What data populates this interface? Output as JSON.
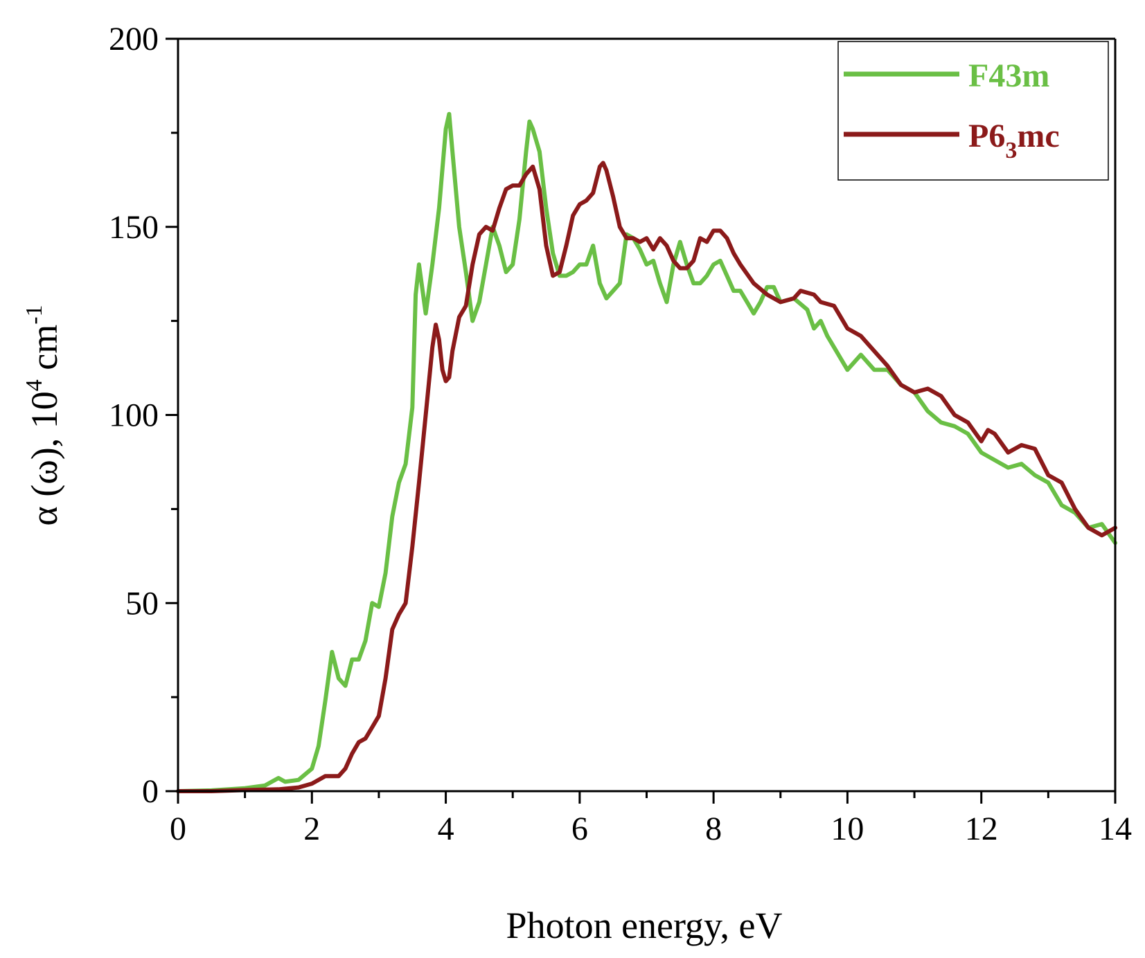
{
  "chart_data": {
    "type": "line",
    "title": "",
    "xlabel": "Photon energy, eV",
    "ylabel": {
      "prefix": "α (ω),  10",
      "superscript": "4",
      "unit": " cm",
      "unit_superscript": "-1"
    },
    "xlim": [
      0,
      14
    ],
    "ylim": [
      0,
      200
    ],
    "xticks": [
      0,
      2,
      4,
      6,
      8,
      10,
      12,
      14
    ],
    "yticks": [
      0,
      50,
      100,
      150,
      200
    ],
    "x_minor_step": 1,
    "y_minor_step": 25,
    "grid": false,
    "legend_position": "top-right",
    "series": [
      {
        "name": "F43m",
        "label_parts": {
          "main": "F43m",
          "sub": ""
        },
        "color": "#6abf45",
        "points": [
          [
            0,
            0
          ],
          [
            0.5,
            0.2
          ],
          [
            1.0,
            0.8
          ],
          [
            1.3,
            1.5
          ],
          [
            1.5,
            3.5
          ],
          [
            1.6,
            2.5
          ],
          [
            1.8,
            3
          ],
          [
            2.0,
            6
          ],
          [
            2.1,
            12
          ],
          [
            2.2,
            24
          ],
          [
            2.3,
            37
          ],
          [
            2.4,
            30
          ],
          [
            2.5,
            28
          ],
          [
            2.6,
            35
          ],
          [
            2.7,
            35
          ],
          [
            2.8,
            40
          ],
          [
            2.9,
            50
          ],
          [
            3.0,
            49
          ],
          [
            3.1,
            58
          ],
          [
            3.2,
            73
          ],
          [
            3.3,
            82
          ],
          [
            3.4,
            87
          ],
          [
            3.5,
            102
          ],
          [
            3.55,
            132
          ],
          [
            3.6,
            140
          ],
          [
            3.7,
            127
          ],
          [
            3.8,
            140
          ],
          [
            3.9,
            155
          ],
          [
            4.0,
            176
          ],
          [
            4.05,
            180
          ],
          [
            4.1,
            170
          ],
          [
            4.2,
            150
          ],
          [
            4.3,
            138
          ],
          [
            4.4,
            125
          ],
          [
            4.5,
            130
          ],
          [
            4.6,
            140
          ],
          [
            4.7,
            150
          ],
          [
            4.8,
            145
          ],
          [
            4.9,
            138
          ],
          [
            5.0,
            140
          ],
          [
            5.1,
            152
          ],
          [
            5.2,
            170
          ],
          [
            5.25,
            178
          ],
          [
            5.3,
            176
          ],
          [
            5.4,
            170
          ],
          [
            5.5,
            155
          ],
          [
            5.6,
            143
          ],
          [
            5.7,
            137
          ],
          [
            5.8,
            137
          ],
          [
            5.9,
            138
          ],
          [
            6.0,
            140
          ],
          [
            6.1,
            140
          ],
          [
            6.2,
            145
          ],
          [
            6.3,
            135
          ],
          [
            6.4,
            131
          ],
          [
            6.5,
            133
          ],
          [
            6.6,
            135
          ],
          [
            6.7,
            148
          ],
          [
            6.8,
            147
          ],
          [
            6.9,
            144
          ],
          [
            7.0,
            140
          ],
          [
            7.1,
            141
          ],
          [
            7.2,
            135
          ],
          [
            7.3,
            130
          ],
          [
            7.4,
            140
          ],
          [
            7.5,
            146
          ],
          [
            7.6,
            140
          ],
          [
            7.7,
            135
          ],
          [
            7.8,
            135
          ],
          [
            7.9,
            137
          ],
          [
            8.0,
            140
          ],
          [
            8.1,
            141
          ],
          [
            8.2,
            137
          ],
          [
            8.3,
            133
          ],
          [
            8.4,
            133
          ],
          [
            8.5,
            130
          ],
          [
            8.6,
            127
          ],
          [
            8.7,
            130
          ],
          [
            8.8,
            134
          ],
          [
            8.9,
            134
          ],
          [
            9.0,
            130
          ],
          [
            9.2,
            131
          ],
          [
            9.4,
            128
          ],
          [
            9.5,
            123
          ],
          [
            9.6,
            125
          ],
          [
            9.7,
            121
          ],
          [
            9.8,
            118
          ],
          [
            10.0,
            112
          ],
          [
            10.1,
            114
          ],
          [
            10.2,
            116
          ],
          [
            10.4,
            112
          ],
          [
            10.6,
            112
          ],
          [
            10.8,
            108
          ],
          [
            11.0,
            106
          ],
          [
            11.2,
            101
          ],
          [
            11.4,
            98
          ],
          [
            11.6,
            97
          ],
          [
            11.8,
            95
          ],
          [
            12.0,
            90
          ],
          [
            12.2,
            88
          ],
          [
            12.4,
            86
          ],
          [
            12.6,
            87
          ],
          [
            12.8,
            84
          ],
          [
            13.0,
            82
          ],
          [
            13.2,
            76
          ],
          [
            13.4,
            74
          ],
          [
            13.6,
            70
          ],
          [
            13.8,
            71
          ],
          [
            14.0,
            66
          ]
        ]
      },
      {
        "name": "P63mc",
        "label_parts": {
          "main": "P6",
          "sub": "3",
          "tail": "mc"
        },
        "color": "#8b1a1a",
        "points": [
          [
            0,
            0
          ],
          [
            0.5,
            0
          ],
          [
            1.0,
            0.3
          ],
          [
            1.5,
            0.5
          ],
          [
            1.8,
            1
          ],
          [
            2.0,
            2
          ],
          [
            2.2,
            4
          ],
          [
            2.4,
            4
          ],
          [
            2.5,
            6
          ],
          [
            2.6,
            10
          ],
          [
            2.7,
            13
          ],
          [
            2.8,
            14
          ],
          [
            2.9,
            17
          ],
          [
            3.0,
            20
          ],
          [
            3.1,
            30
          ],
          [
            3.2,
            43
          ],
          [
            3.3,
            47
          ],
          [
            3.4,
            50
          ],
          [
            3.5,
            65
          ],
          [
            3.6,
            82
          ],
          [
            3.7,
            100
          ],
          [
            3.8,
            118
          ],
          [
            3.85,
            124
          ],
          [
            3.9,
            120
          ],
          [
            3.95,
            112
          ],
          [
            4.0,
            109
          ],
          [
            4.05,
            110
          ],
          [
            4.1,
            117
          ],
          [
            4.2,
            126
          ],
          [
            4.3,
            129
          ],
          [
            4.4,
            140
          ],
          [
            4.5,
            148
          ],
          [
            4.6,
            150
          ],
          [
            4.7,
            149
          ],
          [
            4.8,
            155
          ],
          [
            4.9,
            160
          ],
          [
            5.0,
            161
          ],
          [
            5.1,
            161
          ],
          [
            5.2,
            164
          ],
          [
            5.3,
            166
          ],
          [
            5.4,
            160
          ],
          [
            5.5,
            145
          ],
          [
            5.6,
            137
          ],
          [
            5.7,
            138
          ],
          [
            5.8,
            145
          ],
          [
            5.9,
            153
          ],
          [
            6.0,
            156
          ],
          [
            6.1,
            157
          ],
          [
            6.2,
            159
          ],
          [
            6.3,
            166
          ],
          [
            6.35,
            167
          ],
          [
            6.4,
            165
          ],
          [
            6.5,
            158
          ],
          [
            6.6,
            150
          ],
          [
            6.7,
            147
          ],
          [
            6.8,
            147
          ],
          [
            6.9,
            146
          ],
          [
            7.0,
            147
          ],
          [
            7.1,
            144
          ],
          [
            7.2,
            147
          ],
          [
            7.3,
            145
          ],
          [
            7.4,
            141
          ],
          [
            7.5,
            139
          ],
          [
            7.6,
            139
          ],
          [
            7.7,
            141
          ],
          [
            7.8,
            147
          ],
          [
            7.9,
            146
          ],
          [
            8.0,
            149
          ],
          [
            8.1,
            149
          ],
          [
            8.2,
            147
          ],
          [
            8.3,
            143
          ],
          [
            8.4,
            140
          ],
          [
            8.6,
            135
          ],
          [
            8.8,
            132
          ],
          [
            9.0,
            130
          ],
          [
            9.2,
            131
          ],
          [
            9.3,
            133
          ],
          [
            9.5,
            132
          ],
          [
            9.6,
            130
          ],
          [
            9.8,
            129
          ],
          [
            9.9,
            126
          ],
          [
            10.0,
            123
          ],
          [
            10.2,
            121
          ],
          [
            10.4,
            117
          ],
          [
            10.6,
            113
          ],
          [
            10.8,
            108
          ],
          [
            11.0,
            106
          ],
          [
            11.2,
            107
          ],
          [
            11.4,
            105
          ],
          [
            11.6,
            100
          ],
          [
            11.8,
            98
          ],
          [
            12.0,
            93
          ],
          [
            12.1,
            96
          ],
          [
            12.2,
            95
          ],
          [
            12.4,
            90
          ],
          [
            12.6,
            92
          ],
          [
            12.8,
            91
          ],
          [
            13.0,
            84
          ],
          [
            13.2,
            82
          ],
          [
            13.4,
            75
          ],
          [
            13.6,
            70
          ],
          [
            13.8,
            68
          ],
          [
            14.0,
            70
          ]
        ]
      }
    ]
  }
}
